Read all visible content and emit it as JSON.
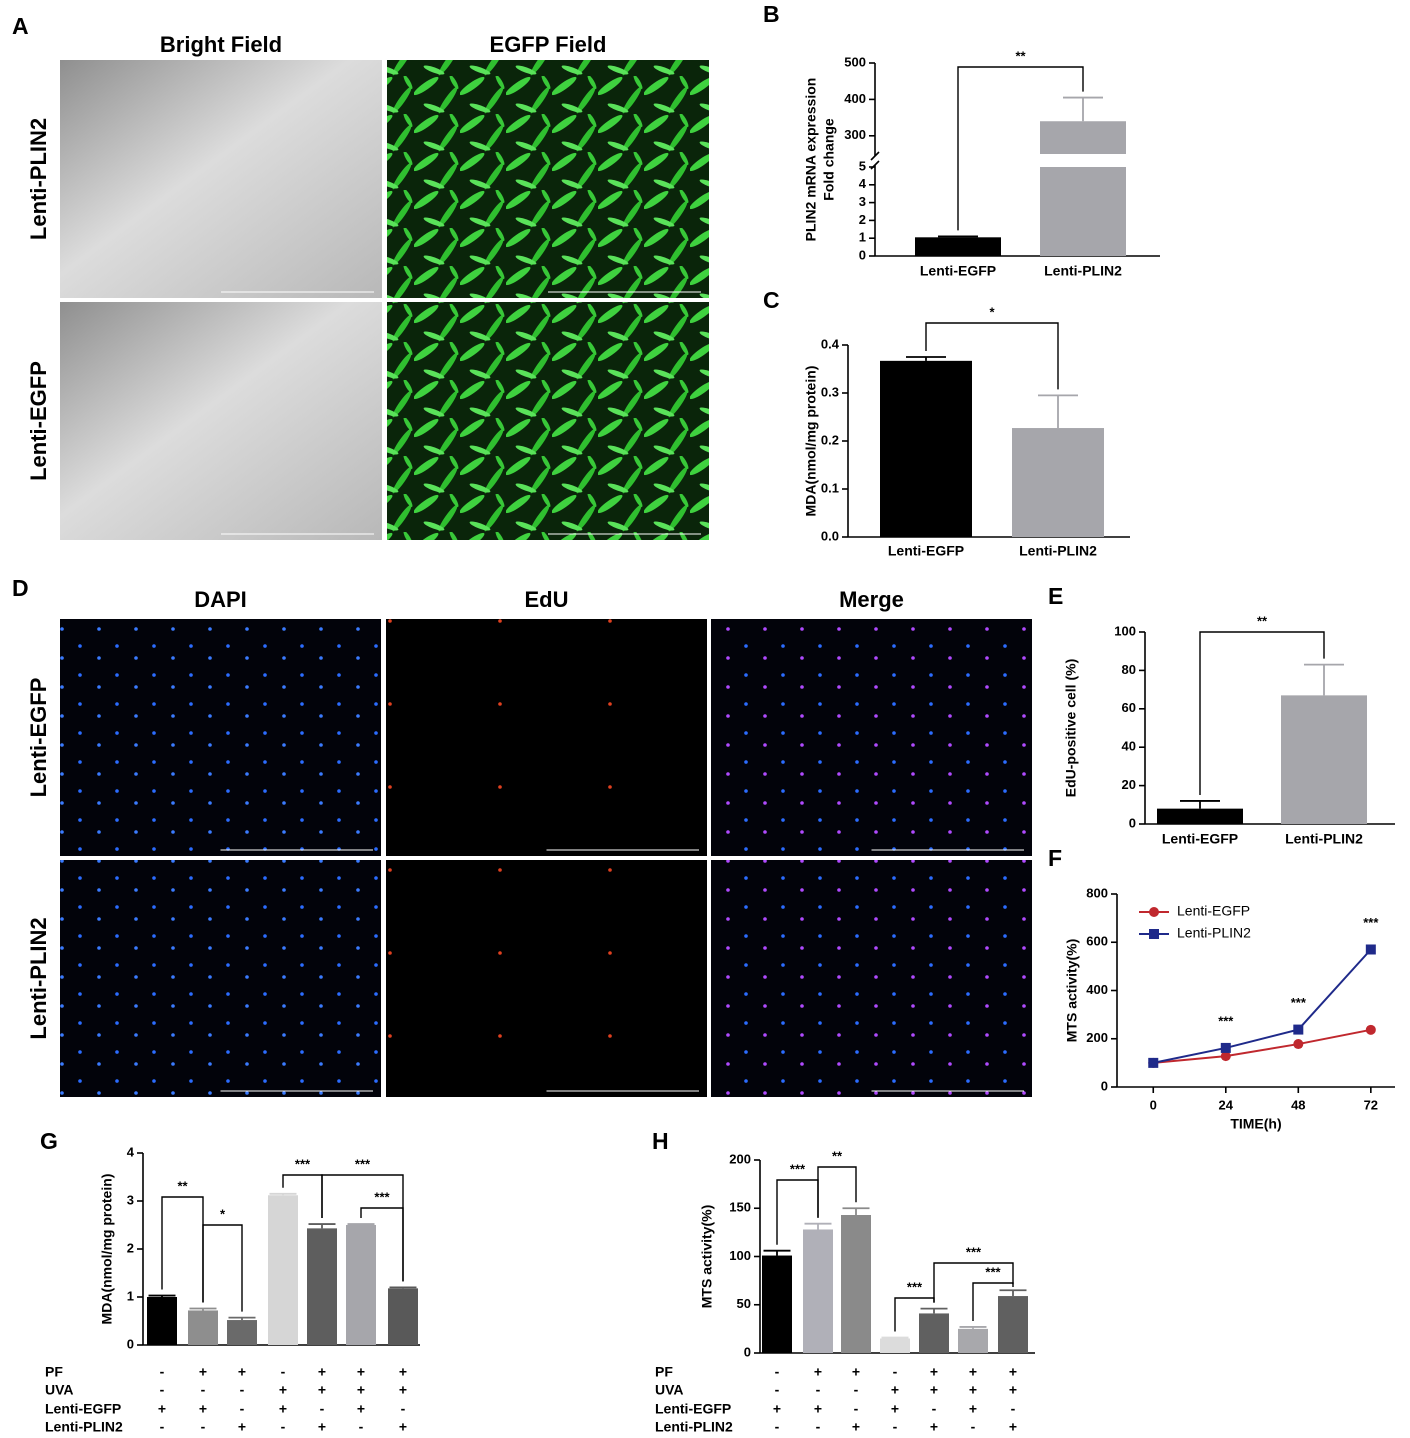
{
  "image_panels": [
    {
      "panel": "A",
      "columns": [
        "Bright Field",
        "EGFP Field"
      ],
      "rows": [
        "Lenti-PLIN2",
        "Lenti-EGFP"
      ]
    },
    {
      "panel": "D",
      "columns": [
        "DAPI",
        "EdU",
        "Merge"
      ],
      "rows": [
        "Lenti-EGFP",
        "Lenti-PLIN2"
      ]
    }
  ],
  "chart_data": [
    {
      "panel": "B",
      "type": "bar",
      "ylabel": [
        "PLIN2 mRNA expression",
        "Fold change"
      ],
      "categories": [
        "Lenti-EGFP",
        "Lenti-PLIN2"
      ],
      "values": [
        1.05,
        340
      ],
      "errors": [
        0.05,
        65
      ],
      "colors": [
        "#000000",
        "#a6a6ab"
      ],
      "ylim": [
        0,
        500
      ],
      "axis_break": [
        5,
        250
      ],
      "yticks": [
        0,
        1,
        2,
        3,
        4,
        5,
        300,
        400,
        500
      ],
      "significance": [
        "**"
      ]
    },
    {
      "panel": "C",
      "type": "bar",
      "ylabel": "MDA(nmol/mg protein)",
      "categories": [
        "Lenti-EGFP",
        "Lenti-PLIN2"
      ],
      "values": [
        0.367,
        0.227
      ],
      "errors": [
        0.008,
        0.068
      ],
      "colors": [
        "#000000",
        "#a6a6ab"
      ],
      "ylim": [
        0,
        0.4
      ],
      "yticks": [
        {
          "value": 0,
          "label": "0.0"
        },
        0.1,
        0.2,
        0.3,
        0.4
      ],
      "significance": [
        "*"
      ]
    },
    {
      "panel": "E",
      "type": "bar",
      "ylabel": "EdU-positive cell (%)",
      "categories": [
        "Lenti-EGFP",
        "Lenti-PLIN2"
      ],
      "values": [
        8,
        67
      ],
      "errors": [
        4,
        16
      ],
      "colors": [
        "#000000",
        "#a6a6ab"
      ],
      "ylim": [
        0,
        100
      ],
      "yticks": [
        0,
        20,
        40,
        60,
        80,
        100
      ],
      "significance": [
        "**"
      ]
    },
    {
      "panel": "F",
      "type": "line",
      "xlabel": "TIME(h)",
      "ylabel": "MTS activity(%)",
      "x": [
        0,
        24,
        48,
        72
      ],
      "xlim": [
        -12,
        80
      ],
      "xticks": [
        0,
        24,
        48,
        72
      ],
      "ylim": [
        0,
        800
      ],
      "yticks": [
        0,
        200,
        400,
        600,
        800
      ],
      "legend": "upper left",
      "series": [
        {
          "name": "Lenti-EGFP",
          "color": "#c0282e",
          "marker": "circle",
          "values": [
            100,
            128,
            178,
            237
          ]
        },
        {
          "name": "Lenti-PLIN2",
          "color": "#1f2a8a",
          "marker": "square",
          "values": [
            100,
            162,
            238,
            570
          ]
        }
      ],
      "annotations": [
        "***",
        "***",
        "***"
      ]
    },
    {
      "panel": "G",
      "type": "bar",
      "ylabel": "MDA(nmol/mg protein)",
      "values": [
        1.0,
        0.72,
        0.52,
        3.12,
        2.43,
        2.5,
        1.18
      ],
      "errors": [
        0.03,
        0.04,
        0.05,
        0.03,
        0.09,
        0.02,
        0.02
      ],
      "colors": [
        "#000000",
        "#8e8e8e",
        "#6a6a6a",
        "#d6d6d6",
        "#5e5e5e",
        "#a6a6ab",
        "#595959"
      ],
      "ylim": [
        0,
        4
      ],
      "yticks": [
        0,
        1,
        2,
        3,
        4
      ],
      "conditions": {
        "labels": [
          "PF",
          "UVA",
          "Lenti-EGFP",
          "Lenti-PLIN2"
        ],
        "rows": [
          [
            "-",
            "+",
            "+",
            "-",
            "+",
            "+",
            "+"
          ],
          [
            "-",
            "-",
            "-",
            "+",
            "+",
            "+",
            "+"
          ],
          [
            "+",
            "+",
            "-",
            "+",
            "-",
            "+",
            "-"
          ],
          [
            "-",
            "-",
            "+",
            "-",
            "+",
            "-",
            "+"
          ]
        ]
      },
      "significance": [
        "**",
        "*",
        "***",
        "***",
        "***"
      ]
    },
    {
      "panel": "H",
      "type": "bar",
      "ylabel": "MTS activity(%)",
      "values": [
        101,
        128,
        143,
        15,
        41,
        25,
        59
      ],
      "errors": [
        5,
        6,
        7,
        1,
        5,
        2,
        6
      ],
      "colors": [
        "#000000",
        "#b0b0b8",
        "#8a8a8a",
        "#dcdcdc",
        "#606060",
        "#a8a8ac",
        "#606060"
      ],
      "ylim": [
        0,
        200
      ],
      "yticks": [
        0,
        50,
        100,
        150,
        200
      ],
      "conditions": {
        "labels": [
          "PF",
          "UVA",
          "Lenti-EGFP",
          "Lenti-PLIN2"
        ],
        "rows": [
          [
            "-",
            "+",
            "+",
            "-",
            "+",
            "+",
            "+"
          ],
          [
            "-",
            "-",
            "-",
            "+",
            "+",
            "+",
            "+"
          ],
          [
            "+",
            "+",
            "-",
            "+",
            "-",
            "+",
            "-"
          ],
          [
            "-",
            "-",
            "+",
            "-",
            "+",
            "-",
            "+"
          ]
        ]
      },
      "significance": [
        "***",
        "**",
        "***",
        "***",
        "***"
      ]
    }
  ]
}
